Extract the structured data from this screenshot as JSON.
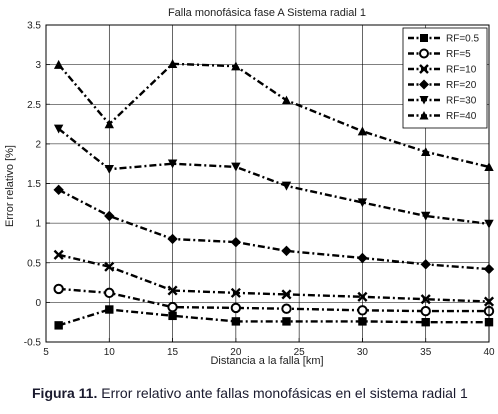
{
  "caption": {
    "label": "Figura 11.",
    "text": " Error relativo ante fallas monofásicas en el sistema radial 1"
  },
  "chart_data": {
    "type": "line",
    "title": "Falla monofásica fase A Sistema radial 1",
    "xlabel": "Distancia a la falla [km]",
    "ylabel": "Error relativo [%]",
    "xlim": [
      5,
      40
    ],
    "ylim": [
      -0.5,
      3.5
    ],
    "xticks": [
      5,
      10,
      15,
      20,
      25,
      30,
      35,
      40
    ],
    "yticks": [
      -0.5,
      0,
      0.5,
      1,
      1.5,
      2,
      2.5,
      3,
      3.5
    ],
    "xtick_labels": [
      "5",
      "10",
      "15",
      "20",
      "25",
      "30",
      "35",
      "40"
    ],
    "ytick_labels": [
      "-0.5",
      "0",
      "0.5",
      "1",
      "1.5",
      "2",
      "2.5",
      "3",
      "3.5"
    ],
    "grid": true,
    "legend_position": "top-right",
    "x": [
      6,
      10,
      15,
      20,
      24,
      30,
      35,
      40
    ],
    "series": [
      {
        "name": "RF=0.5",
        "marker": "square",
        "values": [
          -0.29,
          -0.09,
          -0.17,
          -0.24,
          -0.24,
          -0.24,
          -0.25,
          -0.25
        ]
      },
      {
        "name": "RF=5",
        "marker": "circle",
        "values": [
          0.17,
          0.12,
          -0.06,
          -0.07,
          -0.08,
          -0.1,
          -0.11,
          -0.11
        ]
      },
      {
        "name": "RF=10",
        "marker": "x",
        "values": [
          0.6,
          0.45,
          0.15,
          0.12,
          0.1,
          0.07,
          0.04,
          0.01
        ]
      },
      {
        "name": "RF=20",
        "marker": "diamond",
        "values": [
          1.42,
          1.09,
          0.8,
          0.76,
          0.65,
          0.56,
          0.48,
          0.42
        ]
      },
      {
        "name": "RF=30",
        "marker": "triangle-down",
        "values": [
          2.19,
          1.68,
          1.75,
          1.71,
          1.47,
          1.26,
          1.09,
          0.99
        ]
      },
      {
        "name": "RF=40",
        "marker": "triangle-up",
        "values": [
          3.0,
          2.25,
          3.01,
          2.98,
          2.55,
          2.16,
          1.9,
          1.71
        ]
      }
    ]
  }
}
